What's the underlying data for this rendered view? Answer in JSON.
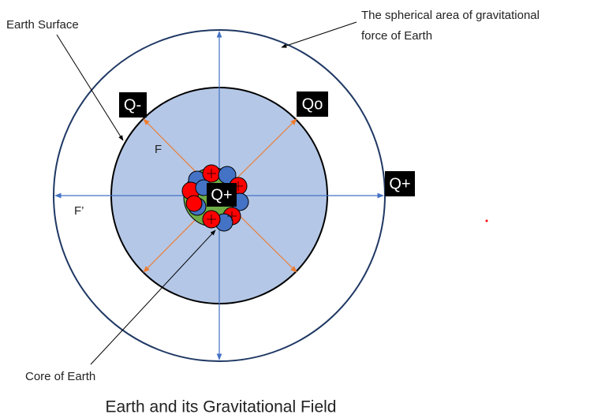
{
  "title": "Earth and its Gravitational Field",
  "annotations": {
    "earth_surface": "Earth Surface",
    "field_area": [
      "The spherical area of gravitational",
      "force of Earth"
    ],
    "core": "Core of Earth"
  },
  "charges": {
    "q_minus": "Q-",
    "q_zero": "Qo",
    "q_plus_outer": "Q+",
    "q_plus_core": "Q+"
  },
  "forces": {
    "inner": "F",
    "outer": "F’"
  }
}
